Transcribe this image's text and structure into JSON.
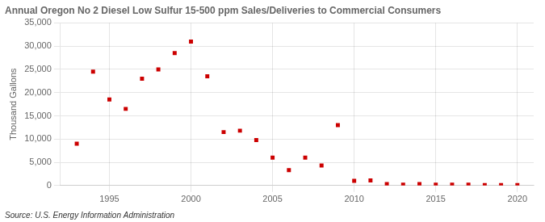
{
  "chart_data": {
    "type": "scatter",
    "title": "Annual Oregon No 2 Diesel Low Sulfur 15-500 ppm Sales/Deliveries to Commercial Consumers",
    "y_label": "Thousand Gallons",
    "annotation": "Source: U.S. Energy Information Administration",
    "x": [
      1993,
      1994,
      1995,
      1996,
      1997,
      1998,
      1999,
      2000,
      2001,
      2002,
      2003,
      2004,
      2005,
      2006,
      2007,
      2008,
      2009,
      2010,
      2011,
      2012,
      2013,
      2014,
      2015,
      2016,
      2017,
      2018,
      2019,
      2020
    ],
    "values": [
      9000,
      24500,
      18500,
      16500,
      23000,
      25000,
      28500,
      31000,
      23500,
      11500,
      11800,
      9800,
      6000,
      3300,
      6000,
      4300,
      13000,
      1000,
      1100,
      300,
      200,
      300,
      200,
      200,
      200,
      100,
      100,
      100
    ],
    "color": "#cc0000",
    "marker": "square",
    "xlim": [
      1992,
      2021
    ],
    "xticks": [
      1995,
      2000,
      2005,
      2010,
      2015,
      2020
    ],
    "ylim": [
      0,
      35000
    ],
    "yticks": [
      0,
      {
        "value": 5000,
        "label": "5,000"
      },
      {
        "value": 10000,
        "label": "10,000"
      },
      {
        "value": 15000,
        "label": "15,000"
      },
      {
        "value": 20000,
        "label": "20,000"
      },
      {
        "value": 25000,
        "label": "25,000"
      },
      {
        "value": 30000,
        "label": "30,000"
      },
      {
        "value": 35000,
        "label": "35,000"
      }
    ],
    "grid": true
  }
}
